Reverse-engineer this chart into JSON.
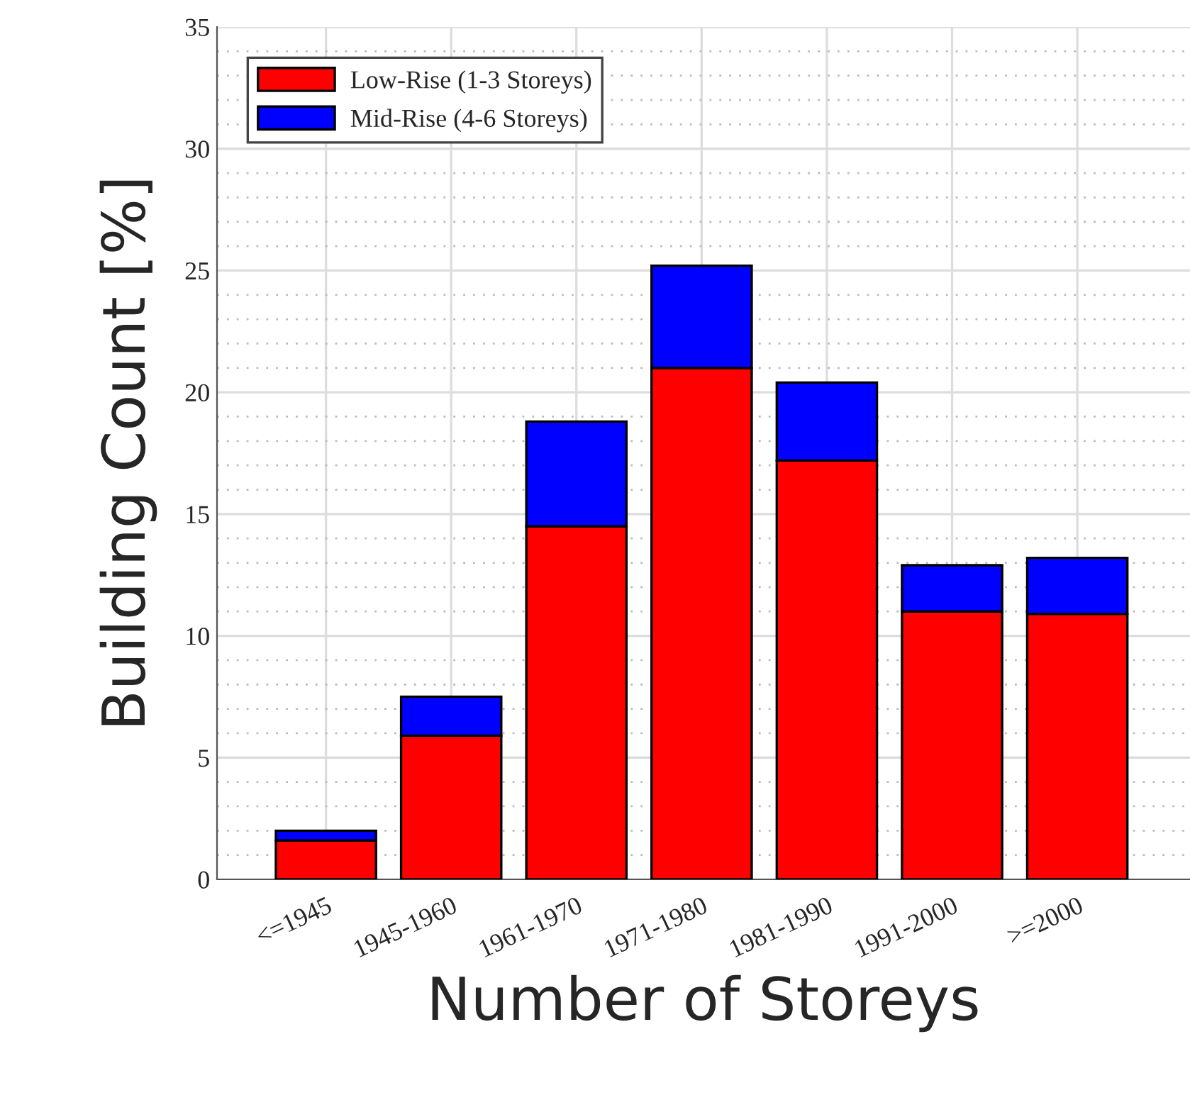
{
  "chart_data": {
    "type": "bar",
    "stacked": true,
    "xlabel": "Number of Storeys",
    "ylabel": "Building Count [%]",
    "categories": [
      "<=1945",
      "1945-1960",
      "1961-1970",
      "1971-1980",
      "1981-1990",
      "1991-2000",
      ">=2000"
    ],
    "series": [
      {
        "name": "Low-Rise (1-3 Storeys)",
        "color": "#ff0000",
        "values": [
          1.6,
          5.9,
          14.5,
          21.0,
          17.2,
          11.0,
          10.9
        ]
      },
      {
        "name": "Mid-Rise (4-6 Storeys)",
        "color": "#0000ff",
        "values": [
          0.4,
          1.6,
          4.3,
          4.2,
          3.2,
          1.9,
          2.3
        ]
      }
    ],
    "ylim": [
      0,
      35
    ],
    "yticks": [
      0,
      5,
      10,
      15,
      20,
      25,
      30,
      35
    ],
    "grid": true,
    "legend": "top left"
  }
}
